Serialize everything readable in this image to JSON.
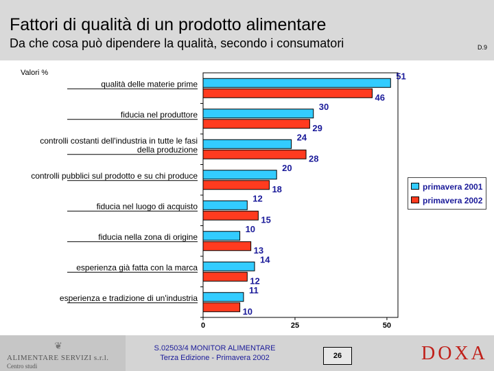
{
  "header": {
    "title": "Fattori di qualità di un prodotto alimentare",
    "subtitle": "Da che cosa può dipendere la qualità, secondo i consumatori",
    "code": "D.9"
  },
  "footer": {
    "logo_name": "ALIMENTARE SERVIZI s.r.l.",
    "logo_sub": "Centro studi",
    "monitor_line1": "S.02503/4 MONITOR ALIMENTARE",
    "monitor_line2": "Terza Edizione - Primavera 2002",
    "page_number": "26",
    "brand": "DOXA"
  },
  "colors": {
    "series_2001": "#33ccff",
    "series_2002": "#ff3b1f",
    "label_text": "#1a1a99"
  },
  "chart_data": {
    "type": "bar",
    "orientation": "horizontal",
    "value_label": "Valori %",
    "categories": [
      [
        "qualità delle materie prime"
      ],
      [
        "fiducia nel produttore"
      ],
      [
        "controlli costanti dell'industria in tutte le fasi",
        "della produzione"
      ],
      [
        "controlli pubblici sul prodotto e su chi produce"
      ],
      [
        "fiducia nel luogo di acquisto"
      ],
      [
        "fiducia nella zona di origine"
      ],
      [
        "esperienza già fatta con la marca"
      ],
      [
        "esperienza e tradizione di un'industria"
      ]
    ],
    "series": [
      {
        "name": "primavera 2001",
        "values": [
          51,
          30,
          24,
          20,
          12,
          10,
          14,
          11
        ]
      },
      {
        "name": "primavera 2002",
        "values": [
          46,
          29,
          28,
          18,
          15,
          13,
          12,
          10
        ]
      }
    ],
    "xlim": [
      0,
      53
    ],
    "xticks": [
      0,
      25,
      50
    ],
    "legend_position": "right"
  }
}
